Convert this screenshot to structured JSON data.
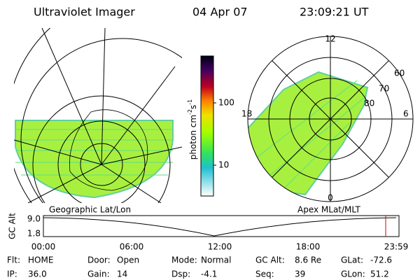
{
  "header": {
    "instrument": "Ultraviolet Imager",
    "date": "04 Apr 07",
    "time": "23:09:21 UT"
  },
  "left_panel": {
    "label": "Geographic Lat/Lon"
  },
  "right_panel": {
    "label": "Apex MLat/MLT",
    "mlt_labels": [
      "12",
      "18",
      "6",
      "0"
    ],
    "lat_labels": [
      "60",
      "70",
      "80"
    ]
  },
  "colorbar": {
    "label": "photon cm",
    "exp1": "-2",
    "unit2": "s",
    "exp2": "-1",
    "ticks": [
      "100",
      "10"
    ]
  },
  "altitude_plot": {
    "ylabel": "GC Alt",
    "yticks": [
      "9.0",
      "1.8"
    ],
    "xticks": [
      "00:00",
      "06:00",
      "12:00",
      "18:00",
      "23:59"
    ]
  },
  "footer": {
    "rows": [
      [
        {
          "label": "Flt:",
          "value": "HOME"
        },
        {
          "label": "Door:",
          "value": "Open"
        },
        {
          "label": "Mode:",
          "value": "Normal"
        },
        {
          "label": "GC Alt:",
          "value": "8.6 Re"
        },
        {
          "label": "GLat:",
          "value": "-72.6"
        }
      ],
      [
        {
          "label": "IP:",
          "value": "36.0"
        },
        {
          "label": "Gain:",
          "value": "14"
        },
        {
          "label": "Dsp:",
          "value": "-4.1"
        },
        {
          "label": "Seq:",
          "value": "39"
        },
        {
          "label": "GLon:",
          "value": "51.2"
        }
      ]
    ]
  }
}
